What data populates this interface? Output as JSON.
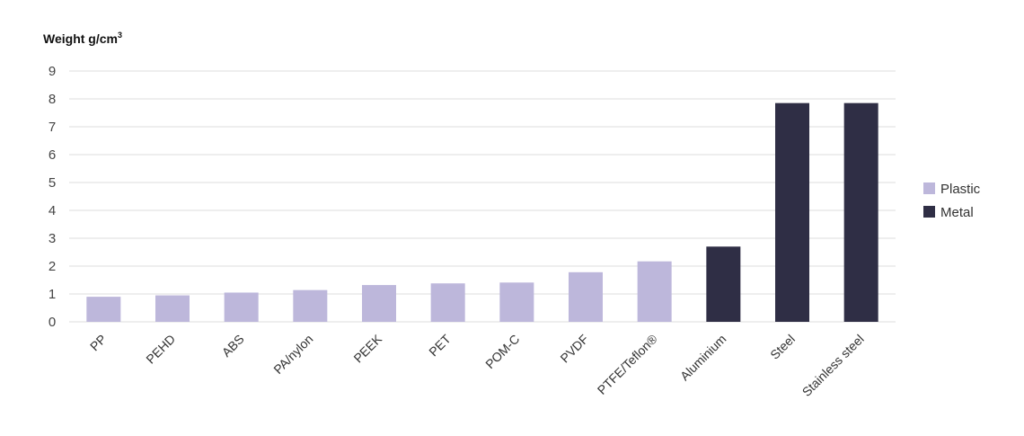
{
  "chart_data": {
    "type": "bar",
    "title": "",
    "ylabel": "Weight g/cm³",
    "xlabel": "",
    "ylim": [
      0,
      9
    ],
    "yticks": [
      0,
      1,
      2,
      3,
      4,
      5,
      6,
      7,
      8,
      9
    ],
    "grid": true,
    "legend_position": "right",
    "categories": [
      "PP",
      "PEHD",
      "ABS",
      "PA/nylon",
      "PEEK",
      "PET",
      "POM-C",
      "PVDF",
      "PTFE/Teflon®",
      "Aluminium",
      "Steel",
      "Stainless steel"
    ],
    "values": [
      0.9,
      0.95,
      1.05,
      1.14,
      1.32,
      1.38,
      1.41,
      1.78,
      2.17,
      2.7,
      7.85,
      7.85
    ],
    "groups": [
      "Plastic",
      "Plastic",
      "Plastic",
      "Plastic",
      "Plastic",
      "Plastic",
      "Plastic",
      "Plastic",
      "Plastic",
      "Metal",
      "Metal",
      "Metal"
    ],
    "legend": [
      {
        "name": "Plastic",
        "color": "#bdb7db"
      },
      {
        "name": "Metal",
        "color": "#2f2e45"
      }
    ]
  },
  "colors": {
    "Plastic": "#bdb7db",
    "Metal": "#2f2e45",
    "grid": "#e4e4e4"
  }
}
